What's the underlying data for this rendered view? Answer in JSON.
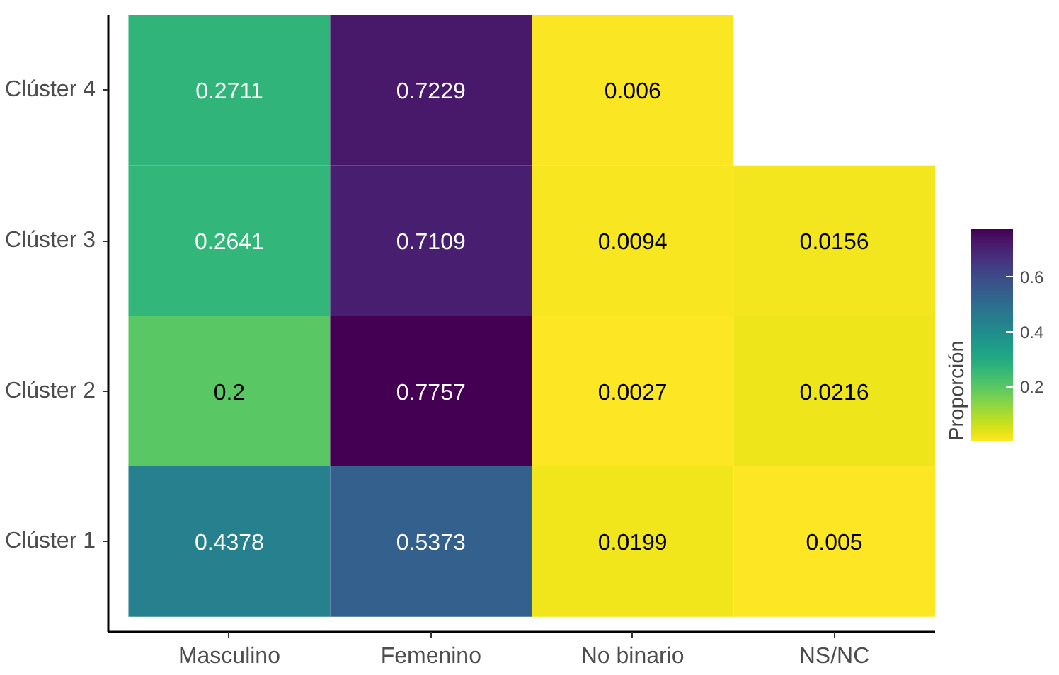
{
  "chart_data": {
    "type": "heatmap",
    "categories": [
      "Masculino",
      "Femenino",
      "No binario",
      "NS/NC"
    ],
    "y_categories": [
      "Clúster 4",
      "Clúster 3",
      "Clúster 2",
      "Clúster 1"
    ],
    "cells": [
      [
        0.2711,
        0.7229,
        0.006,
        null
      ],
      [
        0.2641,
        0.7109,
        0.0094,
        0.0156
      ],
      [
        0.2,
        0.7757,
        0.0027,
        0.0216
      ],
      [
        0.4378,
        0.5373,
        0.0199,
        0.005
      ]
    ],
    "clabel": "Proporción",
    "clim": [
      0.0027,
      0.7757
    ],
    "cticks": [
      0.2,
      0.4,
      0.6
    ],
    "data_labels": true
  }
}
